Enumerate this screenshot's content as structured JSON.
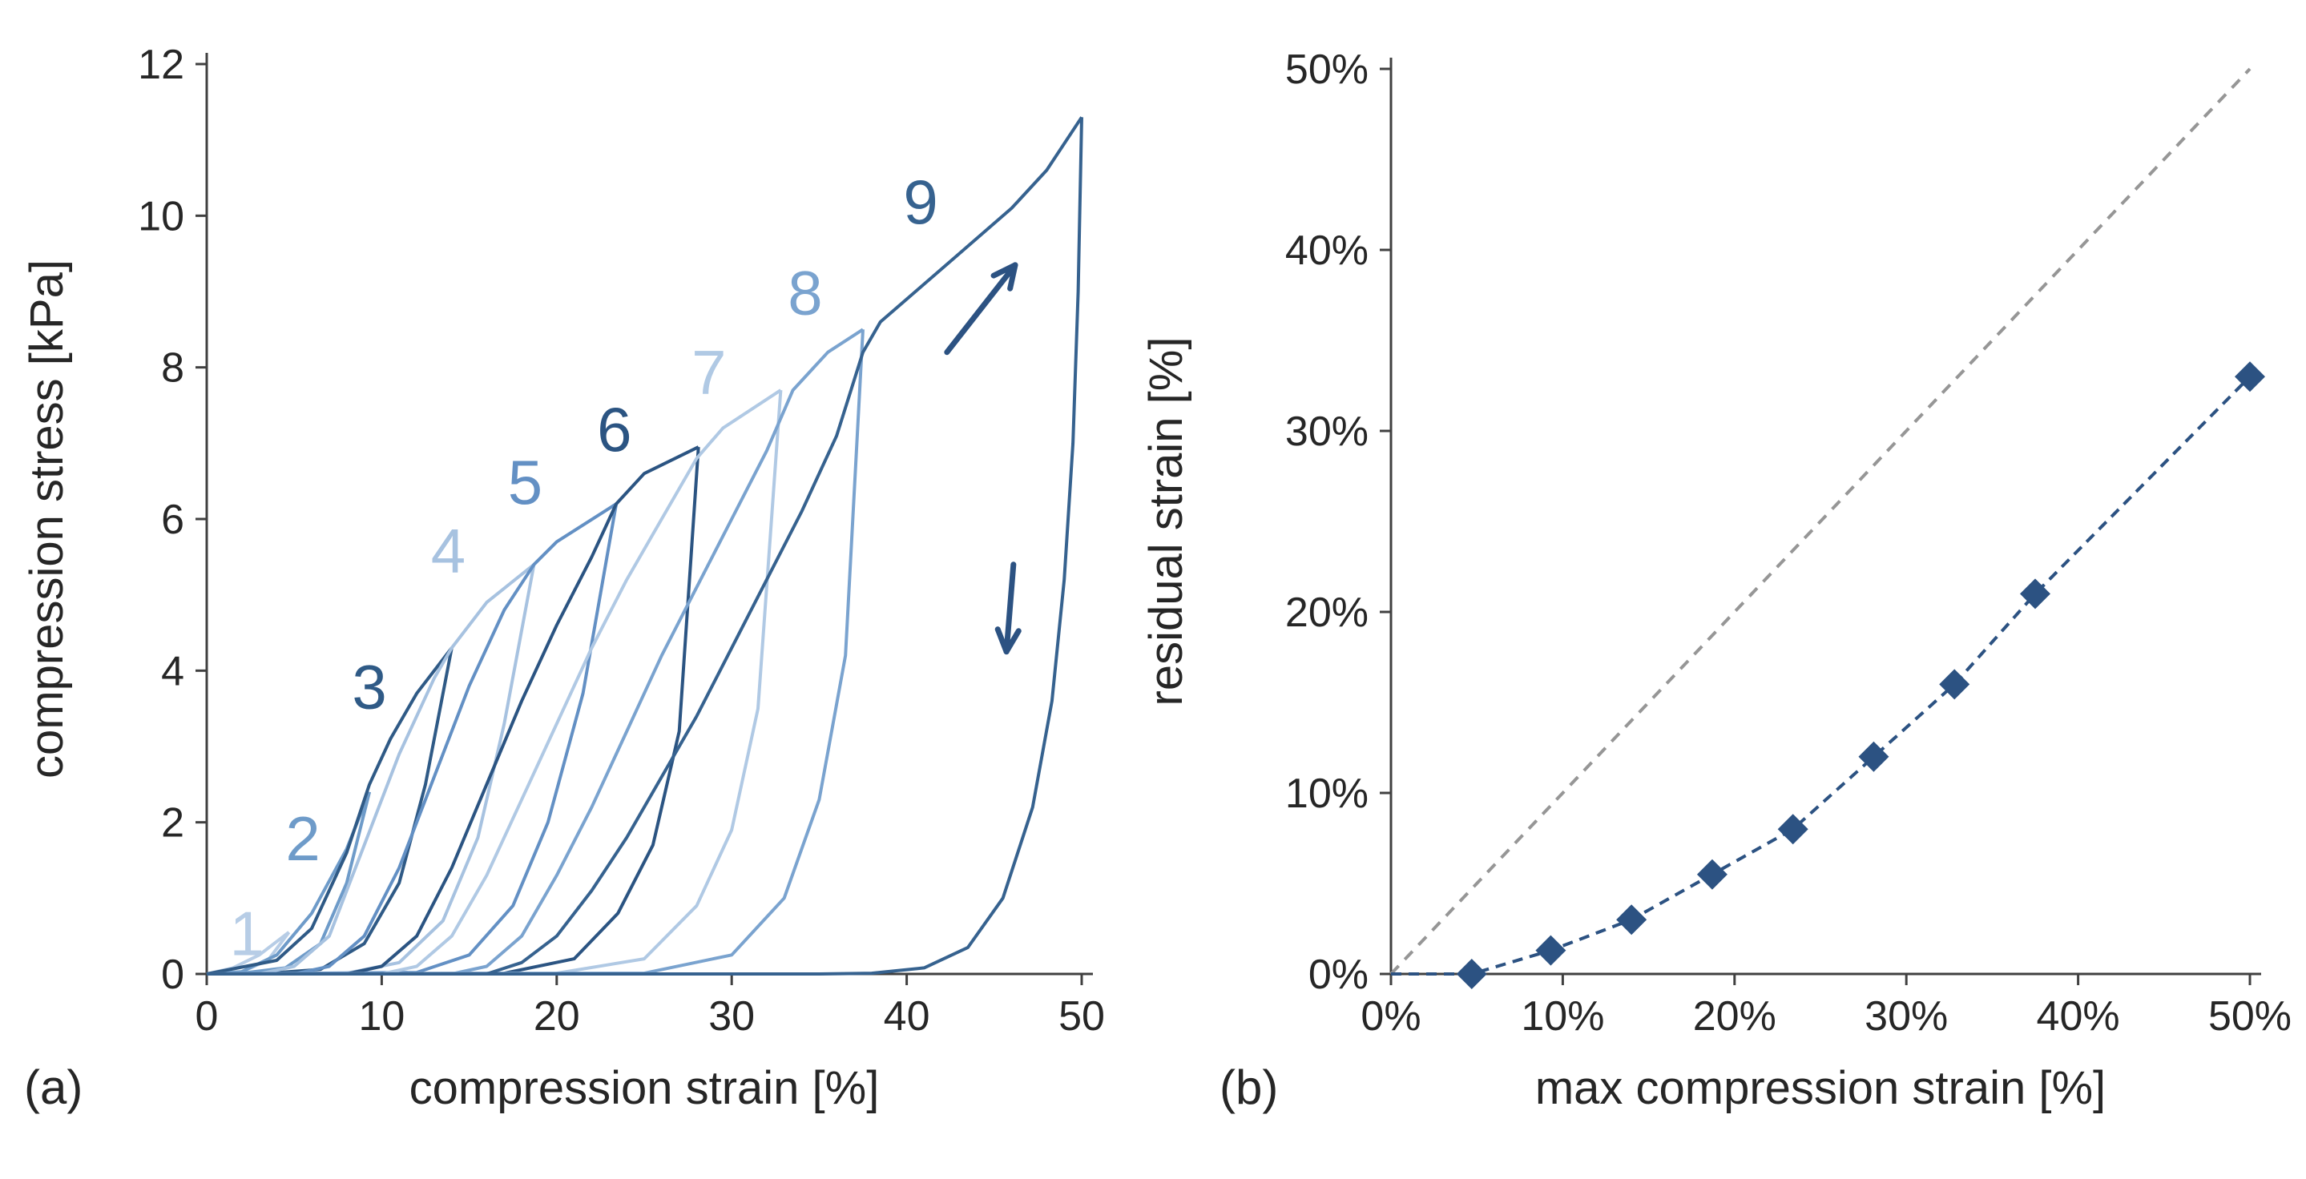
{
  "chart_data": [
    {
      "type": "line",
      "panel_label": "(a)",
      "title": "",
      "xlabel": "compression strain [%]",
      "ylabel": "compression stress [kPa]",
      "xlim": [
        0,
        50
      ],
      "ylim": [
        0,
        12
      ],
      "xticks": [
        0,
        10,
        20,
        30,
        40,
        50
      ],
      "yticks": [
        0,
        2,
        4,
        6,
        8,
        10,
        12
      ],
      "xtick_labels": [
        "0",
        "10",
        "20",
        "30",
        "40",
        "50"
      ],
      "ytick_labels": [
        "0",
        "2",
        "4",
        "6",
        "8",
        "10",
        "12"
      ],
      "grid": false,
      "legend": "none",
      "annotations": [
        {
          "kind": "arrow",
          "direction": "up-right",
          "at": [
            45.5,
            9.3
          ],
          "meaning": "loading"
        },
        {
          "kind": "arrow",
          "direction": "down",
          "at": [
            46.0,
            4.8
          ],
          "meaning": "unloading"
        }
      ],
      "series": [
        {
          "name": "1",
          "label": "1",
          "color": "#b7cde6",
          "max_strain": 4.7,
          "peak_stress": 0.55,
          "label_pos": [
            2.3,
            0.25
          ],
          "loading": [
            [
              0,
              0
            ],
            [
              1.5,
              0.08
            ],
            [
              3,
              0.25
            ],
            [
              4.7,
              0.55
            ]
          ],
          "unloading": [
            [
              4.7,
              0.55
            ],
            [
              3.5,
              0.18
            ],
            [
              2,
              0.03
            ],
            [
              0,
              0
            ]
          ]
        },
        {
          "name": "2",
          "label": "2",
          "color": "#6e9bc9",
          "max_strain": 9.3,
          "peak_stress": 2.4,
          "label_pos": [
            5.5,
            1.5
          ],
          "loading": [
            [
              0,
              0
            ],
            [
              2,
              0.03
            ],
            [
              4,
              0.25
            ],
            [
              6,
              0.8
            ],
            [
              8,
              1.65
            ],
            [
              9.3,
              2.4
            ]
          ],
          "unloading": [
            [
              9.3,
              2.4
            ],
            [
              8,
              1.2
            ],
            [
              6.5,
              0.4
            ],
            [
              4.5,
              0.08
            ],
            [
              2,
              0.01
            ],
            [
              0,
              0
            ]
          ]
        },
        {
          "name": "3",
          "label": "3",
          "color": "#2f5a86",
          "max_strain": 14.0,
          "peak_stress": 4.3,
          "label_pos": [
            9.3,
            3.5
          ],
          "loading": [
            [
              0,
              0
            ],
            [
              4,
              0.18
            ],
            [
              6,
              0.6
            ],
            [
              8,
              1.6
            ],
            [
              9.3,
              2.5
            ],
            [
              10.5,
              3.1
            ],
            [
              12,
              3.7
            ],
            [
              14,
              4.3
            ]
          ],
          "unloading": [
            [
              14,
              4.3
            ],
            [
              12.5,
              2.5
            ],
            [
              11,
              1.2
            ],
            [
              9,
              0.4
            ],
            [
              6.5,
              0.06
            ],
            [
              3,
              0
            ],
            [
              0,
              0
            ]
          ]
        },
        {
          "name": "4",
          "label": "4",
          "color": "#a7c2e0",
          "max_strain": 18.7,
          "peak_stress": 5.4,
          "label_pos": [
            13.8,
            5.3
          ],
          "loading": [
            [
              0,
              0
            ],
            [
              3,
              0
            ],
            [
              5,
              0.1
            ],
            [
              7,
              0.5
            ],
            [
              9,
              1.7
            ],
            [
              11,
              2.9
            ],
            [
              13,
              3.9
            ],
            [
              14,
              4.3
            ],
            [
              16,
              4.9
            ],
            [
              18.7,
              5.4
            ]
          ],
          "unloading": [
            [
              18.7,
              5.4
            ],
            [
              17,
              3.3
            ],
            [
              15.5,
              1.8
            ],
            [
              13.5,
              0.7
            ],
            [
              11,
              0.15
            ],
            [
              8,
              0.01
            ],
            [
              0,
              0
            ]
          ]
        },
        {
          "name": "5",
          "label": "5",
          "color": "#6390c4",
          "max_strain": 23.4,
          "peak_stress": 6.2,
          "label_pos": [
            18.2,
            6.2
          ],
          "loading": [
            [
              0,
              0
            ],
            [
              5,
              0
            ],
            [
              7,
              0.1
            ],
            [
              9,
              0.5
            ],
            [
              11,
              1.4
            ],
            [
              13,
              2.6
            ],
            [
              15,
              3.8
            ],
            [
              17,
              4.8
            ],
            [
              18.7,
              5.4
            ],
            [
              20,
              5.7
            ],
            [
              23.4,
              6.2
            ]
          ],
          "unloading": [
            [
              23.4,
              6.2
            ],
            [
              21.5,
              3.7
            ],
            [
              19.5,
              2.0
            ],
            [
              17.5,
              0.9
            ],
            [
              15,
              0.25
            ],
            [
              12,
              0.02
            ],
            [
              0,
              0
            ]
          ]
        },
        {
          "name": "6",
          "label": "6",
          "color": "#2b5482",
          "max_strain": 28.1,
          "peak_stress": 6.95,
          "label_pos": [
            23.3,
            6.9
          ],
          "loading": [
            [
              0,
              0
            ],
            [
              8,
              0
            ],
            [
              10,
              0.1
            ],
            [
              12,
              0.5
            ],
            [
              14,
              1.4
            ],
            [
              16,
              2.5
            ],
            [
              18,
              3.6
            ],
            [
              20,
              4.6
            ],
            [
              22,
              5.5
            ],
            [
              23.4,
              6.2
            ],
            [
              25,
              6.6
            ],
            [
              28.1,
              6.95
            ]
          ],
          "unloading": [
            [
              28.1,
              6.95
            ],
            [
              27,
              3.2
            ],
            [
              25.5,
              1.7
            ],
            [
              23.5,
              0.8
            ],
            [
              21,
              0.2
            ],
            [
              17,
              0.01
            ],
            [
              0,
              0
            ]
          ]
        },
        {
          "name": "7",
          "label": "7",
          "color": "#b0c9e4",
          "max_strain": 32.8,
          "peak_stress": 7.7,
          "label_pos": [
            28.7,
            7.65
          ],
          "loading": [
            [
              0,
              0
            ],
            [
              10,
              0
            ],
            [
              12,
              0.1
            ],
            [
              14,
              0.5
            ],
            [
              16,
              1.3
            ],
            [
              18,
              2.3
            ],
            [
              20,
              3.3
            ],
            [
              22,
              4.3
            ],
            [
              24,
              5.2
            ],
            [
              26,
              6.0
            ],
            [
              28,
              6.8
            ],
            [
              29.5,
              7.2
            ],
            [
              32.8,
              7.7
            ]
          ],
          "unloading": [
            [
              32.8,
              7.7
            ],
            [
              31.5,
              3.5
            ],
            [
              30,
              1.9
            ],
            [
              28,
              0.9
            ],
            [
              25,
              0.2
            ],
            [
              20,
              0.01
            ],
            [
              0,
              0
            ]
          ]
        },
        {
          "name": "8",
          "label": "8",
          "color": "#7aa3cf",
          "max_strain": 37.5,
          "peak_stress": 8.5,
          "label_pos": [
            34.2,
            8.7
          ],
          "loading": [
            [
              0,
              0
            ],
            [
              14,
              0
            ],
            [
              16,
              0.1
            ],
            [
              18,
              0.5
            ],
            [
              20,
              1.3
            ],
            [
              22,
              2.2
            ],
            [
              24,
              3.2
            ],
            [
              26,
              4.2
            ],
            [
              28,
              5.1
            ],
            [
              30,
              6.0
            ],
            [
              32,
              6.9
            ],
            [
              33.5,
              7.7
            ],
            [
              35.5,
              8.2
            ],
            [
              37.5,
              8.5
            ]
          ],
          "unloading": [
            [
              37.5,
              8.5
            ],
            [
              36.5,
              4.2
            ],
            [
              35,
              2.3
            ],
            [
              33,
              1.0
            ],
            [
              30,
              0.25
            ],
            [
              25,
              0.01
            ],
            [
              0,
              0
            ]
          ]
        },
        {
          "name": "9",
          "label": "9",
          "color": "#36628f",
          "max_strain": 50.0,
          "peak_stress": 11.3,
          "label_pos": [
            40.8,
            9.9
          ],
          "loading": [
            [
              0,
              0
            ],
            [
              16,
              0
            ],
            [
              18,
              0.15
            ],
            [
              20,
              0.5
            ],
            [
              22,
              1.1
            ],
            [
              24,
              1.8
            ],
            [
              26,
              2.6
            ],
            [
              28,
              3.4
            ],
            [
              30,
              4.3
            ],
            [
              32,
              5.2
            ],
            [
              34,
              6.1
            ],
            [
              36,
              7.1
            ],
            [
              37.5,
              8.2
            ],
            [
              38.5,
              8.6
            ],
            [
              40,
              8.9
            ],
            [
              43,
              9.5
            ],
            [
              46,
              10.1
            ],
            [
              48,
              10.6
            ],
            [
              50,
              11.3
            ]
          ],
          "unloading": [
            [
              50,
              11.3
            ],
            [
              49.8,
              9
            ],
            [
              49.5,
              7
            ],
            [
              49,
              5.2
            ],
            [
              48.3,
              3.6
            ],
            [
              47.2,
              2.2
            ],
            [
              45.5,
              1.0
            ],
            [
              43.5,
              0.35
            ],
            [
              41,
              0.08
            ],
            [
              38,
              0.01
            ],
            [
              35,
              0
            ],
            [
              0,
              0
            ]
          ]
        }
      ]
    },
    {
      "type": "scatter",
      "panel_label": "(b)",
      "title": "",
      "xlabel": "max compression strain [%]",
      "ylabel": "residual strain [%]",
      "xlim": [
        0,
        50
      ],
      "ylim": [
        0,
        50
      ],
      "xticks": [
        0,
        10,
        20,
        30,
        40,
        50
      ],
      "yticks": [
        0,
        10,
        20,
        30,
        40,
        50
      ],
      "xtick_labels": [
        "0%",
        "10%",
        "20%",
        "30%",
        "40%",
        "50%"
      ],
      "ytick_labels": [
        "0%",
        "10%",
        "20%",
        "30%",
        "40%",
        "50%"
      ],
      "grid": false,
      "legend": "none",
      "series": [
        {
          "name": "residual strain",
          "marker": "diamond",
          "color": "#2c5282",
          "trend_line": "dashed",
          "x": [
            4.7,
            9.3,
            14.0,
            18.7,
            23.4,
            28.1,
            32.8,
            37.5,
            50.0
          ],
          "y": [
            0,
            1.3,
            3.0,
            5.5,
            8.0,
            12.0,
            16.0,
            21.0,
            33.0
          ]
        },
        {
          "name": "reference y = x",
          "style": "dashed",
          "color": "#969696",
          "x": [
            0,
            50
          ],
          "y": [
            0,
            50
          ]
        }
      ]
    }
  ]
}
